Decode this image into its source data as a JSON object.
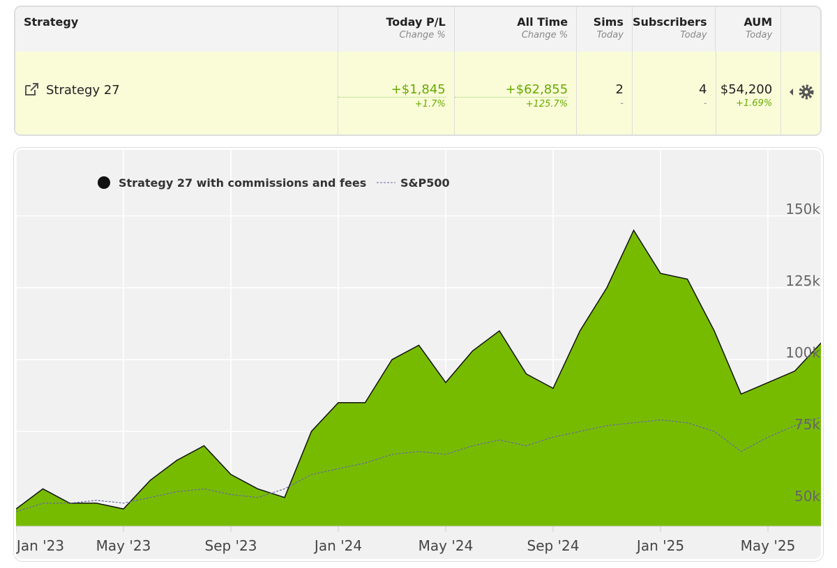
{
  "table": {
    "header": [
      {
        "label": "Strategy"
      },
      {
        "label": "Today P/L",
        "sub": "Change %"
      },
      {
        "label": "All Time",
        "sub": "Change %"
      },
      {
        "label": "Sims",
        "sub": "Today"
      },
      {
        "label": "Subscribers",
        "sub": "Today"
      },
      {
        "label": "AUM",
        "sub": "Today"
      }
    ],
    "row": {
      "name": "Strategy 27",
      "today_pl": "+$1,845",
      "today_pct": "+1.7%",
      "all_time": "+$62,855",
      "all_time_pct": "+125.7%",
      "sims": "2",
      "sims_sub": "-",
      "subscribers": "4",
      "subscribers_sub": "-",
      "aum": "$54,200",
      "aum_pct": "+1.69%"
    }
  },
  "chart_data": {
    "type": "area",
    "x": [
      "2023-01",
      "2023-02",
      "2023-03",
      "2023-04",
      "2023-05",
      "2023-06",
      "2023-07",
      "2023-08",
      "2023-09",
      "2023-10",
      "2023-11",
      "2023-12",
      "2024-01",
      "2024-02",
      "2024-03",
      "2024-04",
      "2024-05",
      "2024-06",
      "2024-07",
      "2024-08",
      "2024-09",
      "2024-10",
      "2024-11",
      "2024-12",
      "2025-01",
      "2025-02",
      "2025-03",
      "2025-04",
      "2025-05",
      "2025-06",
      "2025-07"
    ],
    "series": [
      {
        "name": "Strategy 27 with commissions and fees",
        "color": "#77bb00",
        "values": [
          48000,
          55000,
          50000,
          50000,
          48000,
          58000,
          65000,
          70000,
          60000,
          55000,
          52000,
          75000,
          85000,
          85000,
          100000,
          105000,
          92000,
          103000,
          110000,
          95000,
          90000,
          110000,
          125000,
          145000,
          130000,
          128000,
          110000,
          88000,
          92000,
          96000,
          106000
        ]
      },
      {
        "name": "S&P500",
        "color": "#6666aa",
        "values": [
          47000,
          50000,
          50000,
          51000,
          50000,
          52000,
          54000,
          55000,
          53000,
          52000,
          55000,
          60000,
          62000,
          64000,
          67000,
          68000,
          67000,
          70000,
          72000,
          70000,
          73000,
          75000,
          77000,
          78000,
          79000,
          78000,
          75000,
          68000,
          73000,
          77000,
          80000
        ]
      }
    ],
    "xlim": [
      "2023-01",
      "2025-07"
    ],
    "xticks": [
      {
        "value": "2023-01",
        "label": "Jan '23"
      },
      {
        "value": "2023-05",
        "label": "May '23"
      },
      {
        "value": "2023-09",
        "label": "Sep '23"
      },
      {
        "value": "2024-01",
        "label": "Jan '24"
      },
      {
        "value": "2024-05",
        "label": "May '24"
      },
      {
        "value": "2024-09",
        "label": "Sep '24"
      },
      {
        "value": "2025-01",
        "label": "Jan '25"
      },
      {
        "value": "2025-05",
        "label": "May '25"
      }
    ],
    "ylim": [
      42000,
      173000
    ],
    "yticks": [
      {
        "value": 50000,
        "label": "50k"
      },
      {
        "value": 75000,
        "label": "75k"
      },
      {
        "value": 100000,
        "label": "100k"
      },
      {
        "value": 125000,
        "label": "125k"
      },
      {
        "value": 150000,
        "label": "150k"
      }
    ],
    "grid": true
  }
}
